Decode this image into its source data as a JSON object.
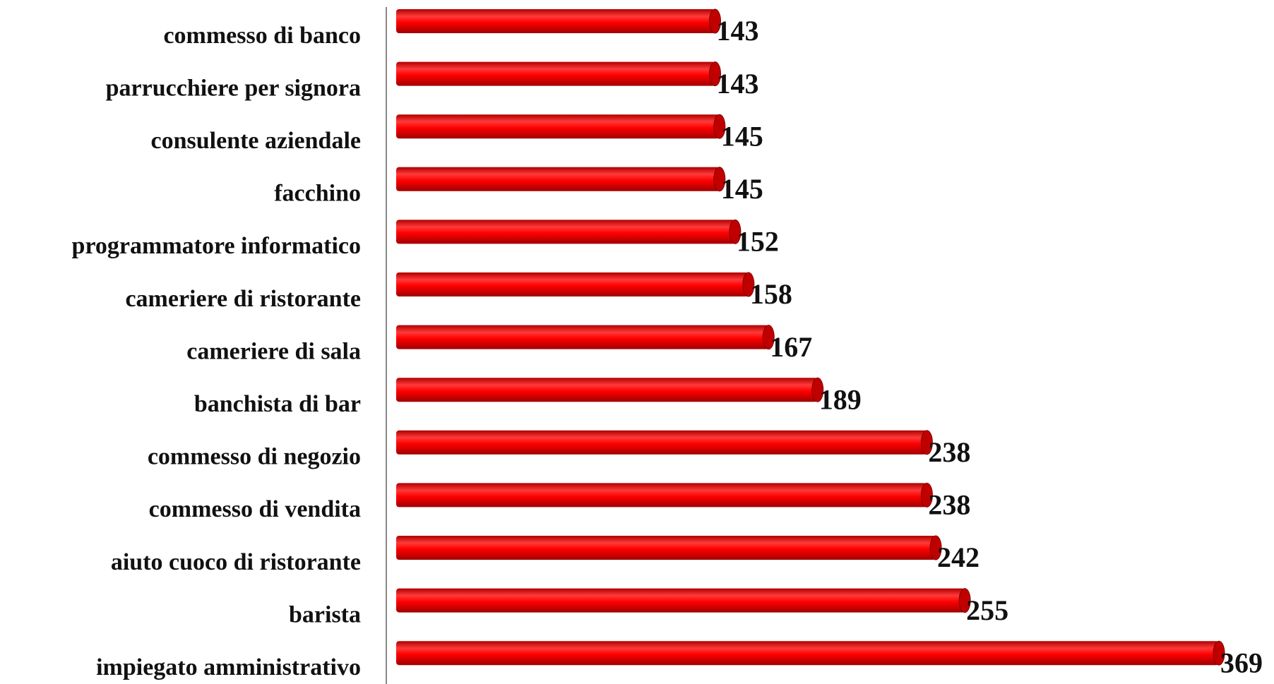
{
  "chart_data": {
    "type": "bar",
    "orientation": "horizontal",
    "categories": [
      "commesso di banco",
      "parrucchiere per signora",
      "consulente aziendale",
      "facchino",
      "programmatore informatico",
      "cameriere di ristorante",
      "cameriere di sala",
      "banchista di bar",
      "commesso di negozio",
      "commesso di vendita",
      "aiuto cuoco di ristorante",
      "barista",
      "impiegato amministrativo"
    ],
    "values": [
      143,
      143,
      145,
      145,
      152,
      158,
      167,
      189,
      238,
      238,
      242,
      255,
      369
    ],
    "color": "#ff0000"
  }
}
